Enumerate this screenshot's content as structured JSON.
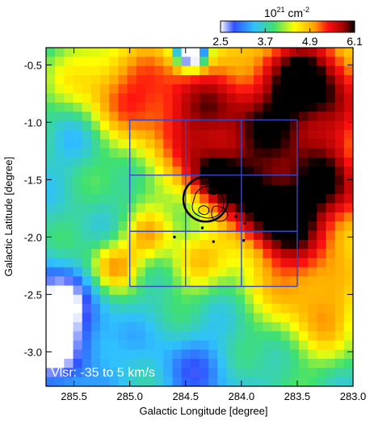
{
  "chart_data": {
    "type": "heatmap",
    "title": "",
    "xlabel": "Galactic Longitude [degree]",
    "ylabel": "Galactic Latitude [degree]",
    "xlim": [
      285.75,
      283.0
    ],
    "ylim": [
      -3.3,
      -0.35
    ],
    "x_ticks": [
      285.5,
      285.0,
      284.5,
      284.0,
      283.5,
      283.0
    ],
    "x_tick_labels": [
      "285.5",
      "285.0",
      "284.5",
      "284.0",
      "283.5",
      "283.0"
    ],
    "y_ticks": [
      -0.5,
      -1.0,
      -1.5,
      -2.0,
      -2.5,
      -3.0
    ],
    "y_tick_labels": [
      "-0.5",
      "-1.0",
      "-1.5",
      "-2.0",
      "-2.5",
      "-3.0"
    ],
    "annotation": "Vlsr: -35 to 5 km/s",
    "colorbar": {
      "label_base": "10",
      "label_exp": "21",
      "label_unit": "cm",
      "label_unit_exp": "-2",
      "min": 2.5,
      "max": 6.1,
      "ticks": [
        2.5,
        3.7,
        4.9,
        6.1
      ],
      "tick_labels": [
        "2.5",
        "3.7",
        "4.9",
        "6.1"
      ]
    },
    "grid_boxes": {
      "l_edges": [
        285.0,
        284.5,
        284.0,
        283.5
      ],
      "b_edges": [
        -0.98,
        -1.46,
        -1.95,
        -2.43
      ]
    },
    "circle": {
      "l": 284.32,
      "b": -1.67,
      "radius_deg": 0.2
    },
    "cluster_center": {
      "l": 284.28,
      "b": -1.72
    },
    "points": [
      {
        "l": 284.05,
        "b": -1.82
      },
      {
        "l": 283.95,
        "b": -1.78
      },
      {
        "l": 284.35,
        "b": -1.92
      },
      {
        "l": 284.6,
        "b": -2.0
      },
      {
        "l": 284.25,
        "b": -2.04
      },
      {
        "l": 283.98,
        "b": -2.03
      },
      {
        "l": 283.97,
        "b": -1.88
      },
      {
        "l": 284.05,
        "b": -1.7
      }
    ],
    "density_blobs": [
      {
        "l": 283.7,
        "b": -1.25,
        "s": 0.55,
        "a": 1.6
      },
      {
        "l": 283.35,
        "b": -0.6,
        "s": 0.35,
        "a": 1.9
      },
      {
        "l": 283.75,
        "b": -1.8,
        "s": 0.25,
        "a": 1.3
      },
      {
        "l": 284.4,
        "b": -0.9,
        "s": 0.4,
        "a": 1.2
      },
      {
        "l": 284.95,
        "b": -0.75,
        "s": 0.35,
        "a": 0.9
      },
      {
        "l": 285.35,
        "b": -0.6,
        "s": 0.3,
        "a": 0.6
      },
      {
        "l": 284.25,
        "b": -1.5,
        "s": 0.18,
        "a": 1.3
      },
      {
        "l": 285.15,
        "b": -2.25,
        "s": 0.15,
        "a": 1.2
      },
      {
        "l": 284.85,
        "b": -2.0,
        "s": 0.15,
        "a": 1.0
      },
      {
        "l": 284.45,
        "b": -2.25,
        "s": 0.18,
        "a": 0.8
      },
      {
        "l": 283.5,
        "b": -2.2,
        "s": 0.35,
        "a": 1.0
      },
      {
        "l": 283.25,
        "b": -2.7,
        "s": 0.3,
        "a": 0.9
      },
      {
        "l": 283.1,
        "b": -1.6,
        "s": 0.3,
        "a": 1.2
      },
      {
        "l": 285.45,
        "b": -1.15,
        "s": 0.2,
        "a": -0.4
      },
      {
        "l": 285.65,
        "b": -2.9,
        "s": 0.3,
        "a": -1.3
      },
      {
        "l": 285.7,
        "b": -2.5,
        "s": 0.2,
        "a": -0.8
      },
      {
        "l": 284.45,
        "b": -3.2,
        "s": 0.3,
        "a": -0.6
      },
      {
        "l": 284.45,
        "b": -0.4,
        "s": 0.08,
        "a": -3.5
      }
    ],
    "base_level": 3.7
  }
}
